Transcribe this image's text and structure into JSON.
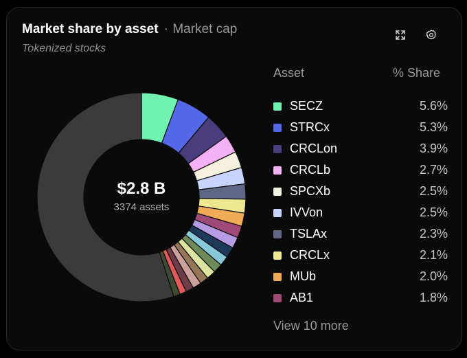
{
  "header": {
    "title": "Market share by asset",
    "separator": "·",
    "metric": "Market cap",
    "category": "Tokenized stocks"
  },
  "icons": {
    "expand": "expand-icon",
    "settings": "gear-icon"
  },
  "summary": {
    "total": "$2.8 B",
    "count": "3374 assets"
  },
  "legend": {
    "asset_header": "Asset",
    "share_header": "% Share",
    "view_more": "View 10 more",
    "items": [
      {
        "name": "SECZ",
        "share": "5.6%"
      },
      {
        "name": "STRCx",
        "share": "5.3%"
      },
      {
        "name": "CRCLon",
        "share": "3.9%"
      },
      {
        "name": "CRCLb",
        "share": "2.7%"
      },
      {
        "name": "SPCXb",
        "share": "2.5%"
      },
      {
        "name": "IVVon",
        "share": "2.5%"
      },
      {
        "name": "TSLAx",
        "share": "2.3%"
      },
      {
        "name": "CRCLx",
        "share": "2.1%"
      },
      {
        "name": "MUb",
        "share": "2.0%"
      },
      {
        "name": "AB1",
        "share": "1.8%"
      }
    ]
  },
  "chart_data": {
    "type": "pie",
    "title": "Market share by asset",
    "categories": [
      "SECZ",
      "STRCx",
      "CRCLon",
      "CRCLb",
      "SPCXb",
      "IVVon",
      "TSLAx",
      "CRCLx",
      "MUb",
      "AB1",
      "",
      "",
      "",
      "",
      "",
      "",
      "",
      "",
      "",
      "",
      ""
    ],
    "values": [
      5.6,
      5.3,
      3.9,
      2.7,
      2.5,
      2.5,
      2.3,
      2.1,
      2.0,
      1.8,
      1.7,
      1.6,
      1.5,
      1.4,
      1.4,
      1.3,
      1.3,
      1.2,
      1.0,
      1.0,
      53.9
    ],
    "colors": [
      "#6ef2ad",
      "#5468e8",
      "#4b3d7d",
      "#f6b0f4",
      "#f3f0de",
      "#c7d4fd",
      "#5d6783",
      "#eee891",
      "#f1ad55",
      "#a04a7a",
      "#b69ae4",
      "#1d395a",
      "#87c9d9",
      "#6e8a58",
      "#dde3a1",
      "#957758",
      "#cda29c",
      "#6e3c48",
      "#e15a58",
      "#3c4a32",
      "#3b3b3b"
    ],
    "legend_position": "right"
  }
}
